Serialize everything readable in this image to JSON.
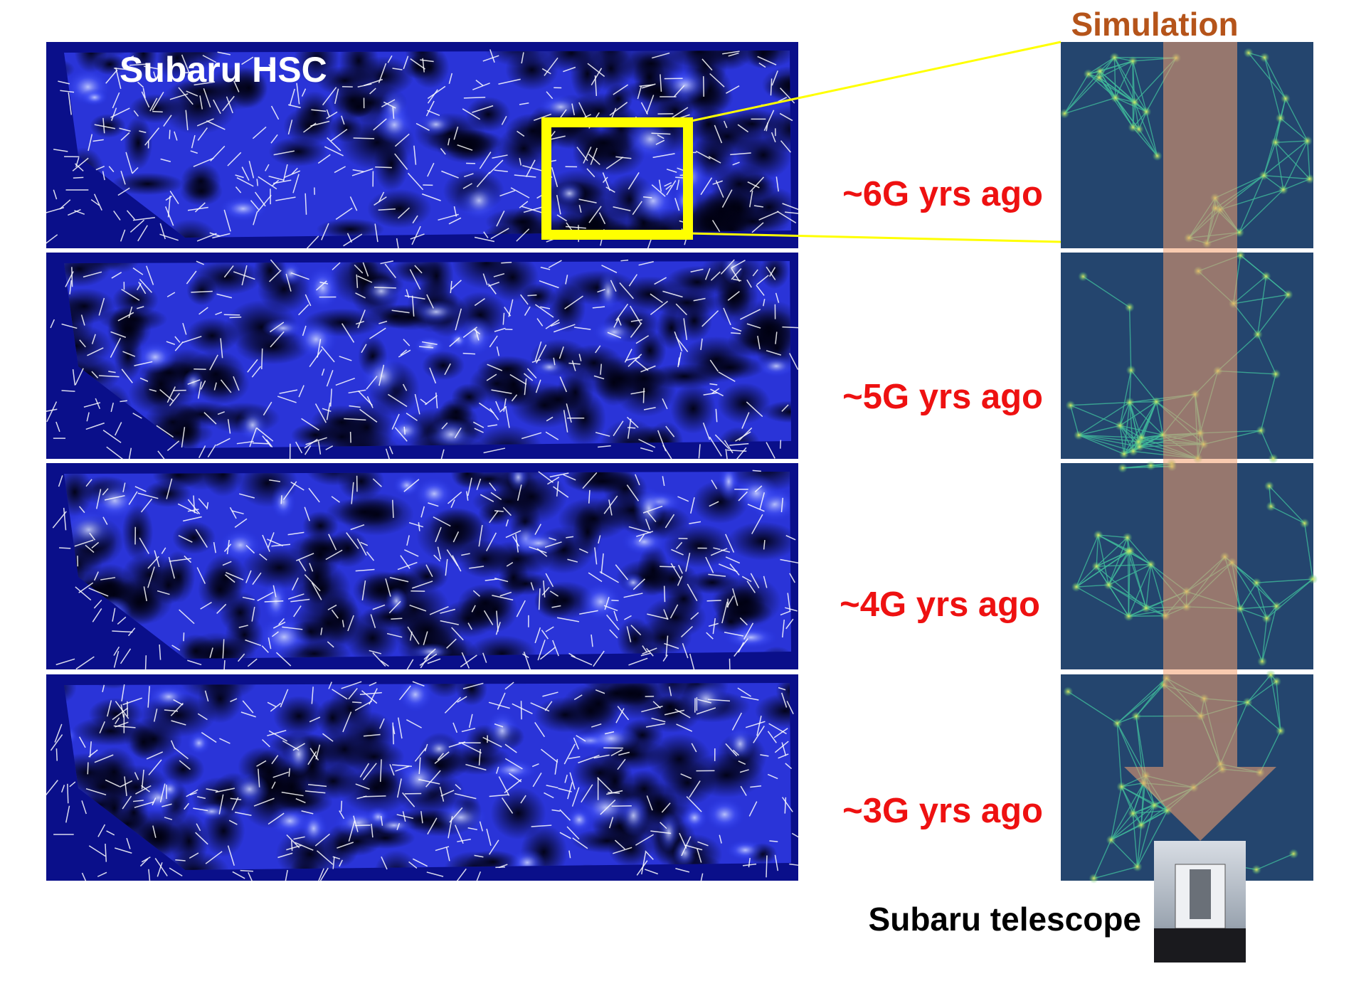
{
  "survey_label": "Subaru HSC",
  "simulation_label": "Simulation",
  "panels": [
    {
      "label": "~6G yrs ago"
    },
    {
      "label": "~5G yrs ago"
    },
    {
      "label": "~4G yrs ago"
    },
    {
      "label": "~3G yrs ago"
    }
  ],
  "telescope_label": "Subaru telescope"
}
